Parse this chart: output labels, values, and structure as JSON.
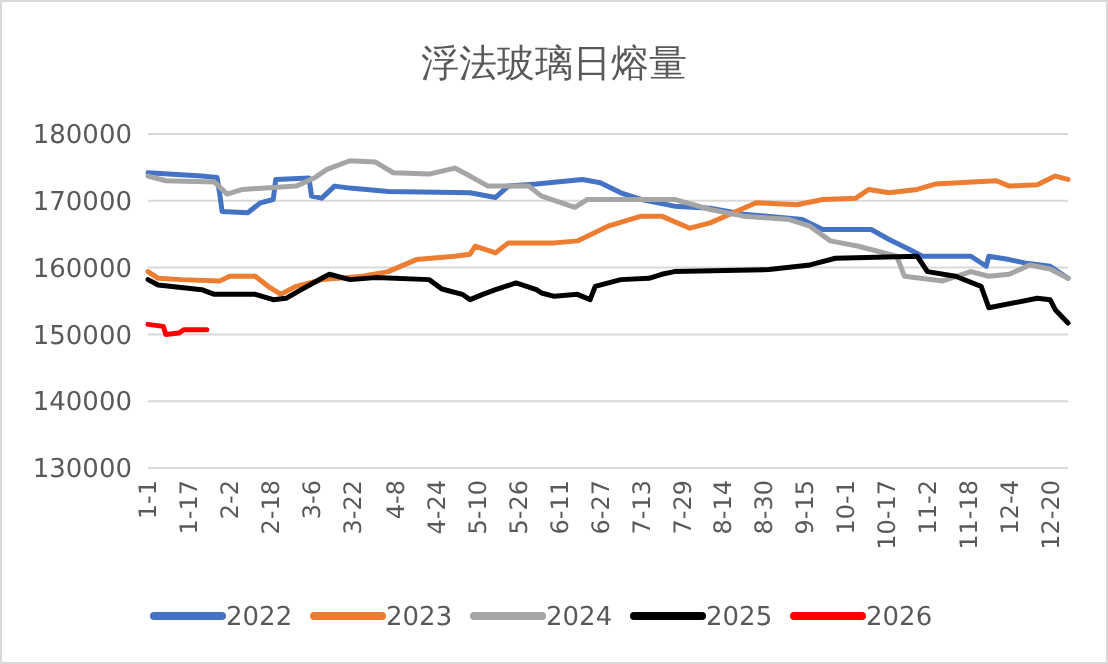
{
  "chart_data": {
    "type": "line",
    "title": "浮法玻璃日熔量",
    "xlim": [
      "--01-01",
      "--12-27"
    ],
    "ylim": [
      130000,
      180000
    ],
    "yticks": [
      130000,
      140000,
      150000,
      160000,
      170000,
      180000
    ],
    "xticks": [
      {
        "value": "--01-01",
        "label": "1-1"
      },
      {
        "value": "--01-17",
        "label": "1-17"
      },
      {
        "value": "--02-02",
        "label": "2-2"
      },
      {
        "value": "--02-18",
        "label": "2-18"
      },
      {
        "value": "--03-06",
        "label": "3-6"
      },
      {
        "value": "--03-22",
        "label": "3-22"
      },
      {
        "value": "--04-08",
        "label": "4-8"
      },
      {
        "value": "--04-24",
        "label": "4-24"
      },
      {
        "value": "--05-10",
        "label": "5-10"
      },
      {
        "value": "--05-26",
        "label": "5-26"
      },
      {
        "value": "--06-11",
        "label": "6-11"
      },
      {
        "value": "--06-27",
        "label": "6-27"
      },
      {
        "value": "--07-13",
        "label": "7-13"
      },
      {
        "value": "--07-29",
        "label": "7-29"
      },
      {
        "value": "--08-14",
        "label": "8-14"
      },
      {
        "value": "--08-30",
        "label": "8-30"
      },
      {
        "value": "--09-15",
        "label": "9-15"
      },
      {
        "value": "--10-01",
        "label": "10-1"
      },
      {
        "value": "--10-17",
        "label": "10-17"
      },
      {
        "value": "--11-02",
        "label": "11-2"
      },
      {
        "value": "--11-18",
        "label": "11-18"
      },
      {
        "value": "--12-04",
        "label": "12-4"
      },
      {
        "value": "--12-20",
        "label": "12-20"
      }
    ],
    "grid": "y",
    "legend": "bottom",
    "marker": "none",
    "line_style": "solid",
    "series": [
      {
        "name": "2022",
        "color": "#4472c4",
        "x": [
          "--01-01",
          "--01-22",
          "--01-28",
          "--01-29",
          "--01-30",
          "--02-09",
          "--02-14",
          "--02-19",
          "--02-20",
          "--03-05",
          "--03-06",
          "--03-10",
          "--03-15",
          "--03-21",
          "--04-05",
          "--05-07",
          "--05-17",
          "--05-22",
          "--06-02",
          "--06-20",
          "--06-27",
          "--07-05",
          "--07-13",
          "--07-26",
          "--08-09",
          "--08-22",
          "--09-14",
          "--09-22",
          "--10-11",
          "--10-18",
          "--10-26",
          "--10-31",
          "--11-19",
          "--11-25",
          "--11-26",
          "--12-04",
          "--12-10",
          "--12-20",
          "--12-27"
        ],
        "values": [
          174200,
          173700,
          173500,
          171200,
          168400,
          168200,
          169700,
          170200,
          173200,
          173400,
          170700,
          170400,
          172200,
          171900,
          171400,
          171200,
          170500,
          172200,
          172500,
          173200,
          172700,
          171200,
          170200,
          169200,
          168900,
          168000,
          167200,
          165700,
          165700,
          164200,
          162700,
          161700,
          161700,
          160200,
          161700,
          161200,
          160700,
          160200,
          158400
        ]
      },
      {
        "name": "2023",
        "color": "#ed7d31",
        "x": [
          "--01-01",
          "--01-05",
          "--01-14",
          "--01-29",
          "--02-02",
          "--02-12",
          "--02-17",
          "--02-22",
          "--02-28",
          "--03-10",
          "--03-26",
          "--04-05",
          "--04-16",
          "--05-01",
          "--05-07",
          "--05-09",
          "--05-17",
          "--05-22",
          "--06-09",
          "--06-18",
          "--06-30",
          "--07-13",
          "--07-21",
          "--08-01",
          "--08-09",
          "--08-18",
          "--08-27",
          "--09-12",
          "--09-22",
          "--10-05",
          "--10-10",
          "--10-18",
          "--10-29",
          "--11-05",
          "--11-29",
          "--12-04",
          "--12-15",
          "--12-22",
          "--12-27"
        ],
        "values": [
          159400,
          158400,
          158200,
          158000,
          158700,
          158700,
          157200,
          156000,
          157200,
          158200,
          158700,
          159400,
          161200,
          161700,
          162000,
          163200,
          162200,
          163700,
          163700,
          164000,
          166200,
          167700,
          167700,
          165900,
          166700,
          168200,
          169700,
          169400,
          170200,
          170400,
          171700,
          171200,
          171700,
          172500,
          173000,
          172200,
          172400,
          173700,
          173200
        ]
      },
      {
        "name": "2024",
        "color": "#a5a5a5",
        "x": [
          "--01-01",
          "--01-08",
          "--01-27",
          "--02-01",
          "--02-07",
          "--02-28",
          "--03-07",
          "--03-12",
          "--03-21",
          "--03-31",
          "--04-07",
          "--04-21",
          "--05-01",
          "--05-07",
          "--05-14",
          "--05-30",
          "--06-04",
          "--06-17",
          "--06-22",
          "--07-26",
          "--08-09",
          "--08-22",
          "--09-09",
          "--09-17",
          "--09-25",
          "--10-06",
          "--10-21",
          "--10-24",
          "--11-08",
          "--11-19",
          "--11-26",
          "--12-04",
          "--12-12",
          "--12-20",
          "--12-27"
        ],
        "values": [
          173700,
          173000,
          172800,
          171000,
          171700,
          172200,
          173400,
          174700,
          176000,
          175800,
          174200,
          174000,
          174900,
          173700,
          172200,
          172200,
          170700,
          169000,
          170200,
          170200,
          168700,
          167700,
          167200,
          166200,
          164000,
          163200,
          161700,
          158700,
          158000,
          159400,
          158700,
          159000,
          160400,
          159800,
          158400
        ]
      },
      {
        "name": "2025",
        "color": "#000000",
        "x": [
          "--01-01",
          "--01-05",
          "--01-22",
          "--01-27",
          "--02-12",
          "--02-19",
          "--02-24",
          "--03-02",
          "--03-10",
          "--03-13",
          "--03-21",
          "--03-31",
          "--04-21",
          "--04-26",
          "--05-04",
          "--05-07",
          "--05-12",
          "--05-17",
          "--05-25",
          "--06-02",
          "--06-04",
          "--06-09",
          "--06-18",
          "--06-23",
          "--06-25",
          "--07-05",
          "--07-16",
          "--07-21",
          "--07-26",
          "--09-01",
          "--09-17",
          "--09-27",
          "--10-29",
          "--11-02",
          "--11-13",
          "--11-23",
          "--11-26",
          "--12-15",
          "--12-20",
          "--12-22",
          "--12-27"
        ],
        "values": [
          158200,
          157400,
          156700,
          156000,
          156000,
          155200,
          155400,
          156700,
          158400,
          159000,
          158200,
          158500,
          158200,
          156800,
          156000,
          155200,
          156000,
          156700,
          157700,
          156700,
          156200,
          155700,
          156000,
          155200,
          157200,
          158200,
          158400,
          159000,
          159400,
          159700,
          160400,
          161400,
          161700,
          159400,
          158700,
          157200,
          154000,
          155400,
          155200,
          153700,
          151700
        ]
      },
      {
        "name": "2026",
        "color": "#ff0000",
        "x": [
          "--01-01",
          "--01-07",
          "--01-08",
          "--01-13",
          "--01-15",
          "--01-24"
        ],
        "values": [
          151500,
          151200,
          150000,
          150200,
          150700,
          150700
        ]
      }
    ]
  }
}
